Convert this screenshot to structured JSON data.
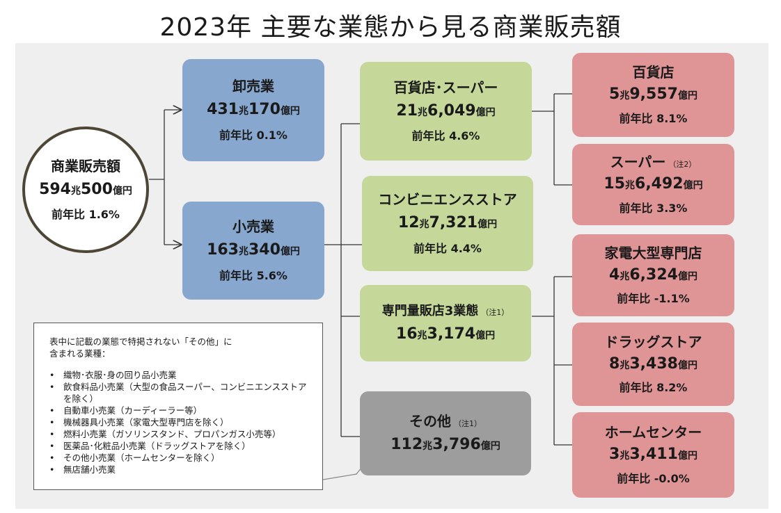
{
  "title": "2023年 主要な業態から見る商業販売額",
  "total": {
    "name": "商業販売額",
    "amount": "594",
    "amount_rest": "500",
    "unit1": "兆",
    "unit2": "億円",
    "yoy": "前年比  1.6%"
  },
  "wholesale": {
    "name": "卸売業",
    "amount": "431",
    "amount_rest": "170",
    "unit1": "兆",
    "unit2": "億円",
    "yoy": "前年比 0.1%"
  },
  "retail": {
    "name": "小売業",
    "amount": "163",
    "amount_rest": "340",
    "unit1": "兆",
    "unit2": "億円",
    "yoy": "前年比 5.6%"
  },
  "dept_super": {
    "name": "百貨店･スーパー",
    "amount": "21",
    "amount_rest": "6,049",
    "unit1": "兆",
    "unit2": "億円",
    "yoy": "前年比 4.6%"
  },
  "convenience": {
    "name": "コンビニエンスストア",
    "amount": "12",
    "amount_rest": "7,321",
    "unit1": "兆",
    "unit2": "億円",
    "yoy": "前年比 4.4%"
  },
  "specialty": {
    "name": "専門量販店3業態",
    "note": "（注1）",
    "amount": "16",
    "amount_rest": "3,174",
    "unit1": "兆",
    "unit2": "億円"
  },
  "other": {
    "name": "その他",
    "note": "（注1）",
    "amount": "112",
    "amount_rest": "3,796",
    "unit1": "兆",
    "unit2": "億円"
  },
  "department": {
    "name": "百貨店",
    "amount": "5",
    "amount_rest": "9,557",
    "unit1": "兆",
    "unit2": "億円",
    "yoy": "前年比 8.1%"
  },
  "supermarket": {
    "name": "スーパー",
    "note": "（注2）",
    "amount": "15",
    "amount_rest": "6,492",
    "unit1": "兆",
    "unit2": "億円",
    "yoy": "前年比  3.3%"
  },
  "electronics": {
    "name": "家電大型専門店",
    "amount": "4",
    "amount_rest": "6,324",
    "unit1": "兆",
    "unit2": "億円",
    "yoy": "前年比  -1.1%"
  },
  "drugstore": {
    "name": "ドラッグストア",
    "amount": "8",
    "amount_rest": "3,438",
    "unit1": "兆",
    "unit2": "億円",
    "yoy": "前年比 8.2%"
  },
  "homecenter": {
    "name": "ホームセンター",
    "amount": "3",
    "amount_rest": "3,411",
    "unit1": "兆",
    "unit2": "億円",
    "yoy": "前年比  -0.0%"
  },
  "notes": {
    "heading1": "表中に記載の業態で特掲されない「その他」に",
    "heading2": "含まれる業種：",
    "items": [
      "織物･衣服･身の回り品小売業",
      "飲食料品小売業（大型の食品スーパー、コンビニエンスストア",
      "を除く）",
      "自動車小売業（カーディーラー等）",
      "機械器具小売業（家電大型専門店を除く）",
      "燃料小売業（ガソリンスタンド、プロパンガス小売等）",
      "医薬品･化粧品小売業（ドラッグストアを除く）",
      "その他小売業（ホームセンターを除く）",
      "無店舗小売業"
    ]
  },
  "colors": {
    "wholesale_retail": "#87a7cf",
    "channel": "#c5d89a",
    "store": "#df9496",
    "other": "#9d9d9d",
    "panel": "#efefef"
  }
}
